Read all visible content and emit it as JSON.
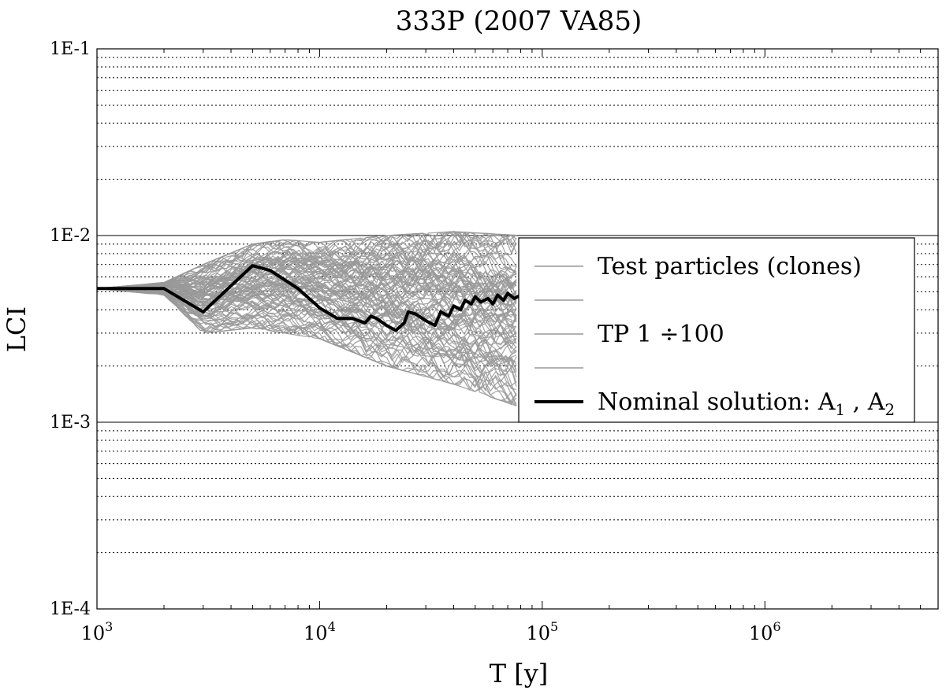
{
  "chart_data": {
    "type": "line",
    "title": "333P (2007 VA85)",
    "xlabel": "T [y]",
    "ylabel": "LCI",
    "xscale": "log",
    "yscale": "log",
    "xlim": [
      1000,
      6000000
    ],
    "ylim": [
      0.0001,
      0.1
    ],
    "x_ticks": [
      {
        "value": 1000,
        "base": "10",
        "exp": "3"
      },
      {
        "value": 10000,
        "base": "10",
        "exp": "4"
      },
      {
        "value": 100000,
        "base": "10",
        "exp": "5"
      },
      {
        "value": 1000000,
        "base": "10",
        "exp": "6"
      }
    ],
    "y_ticks": [
      {
        "value": 0.1,
        "label": "1E-1"
      },
      {
        "value": 0.01,
        "label": "1E-2"
      },
      {
        "value": 0.001,
        "label": "1E-3"
      },
      {
        "value": 0.0001,
        "label": "1E-4"
      }
    ],
    "grid": true,
    "legend_position": "center-right",
    "legend": [
      {
        "label": "Test particles (clones)",
        "style": "gray"
      },
      {
        "label": "",
        "style": "gray"
      },
      {
        "label": "TP 1 ÷100",
        "style": "gray"
      },
      {
        "label": "",
        "style": "gray"
      },
      {
        "label": "Nominal solution: A",
        "sub1": "1",
        "sep": " , A",
        "sub2": "2",
        "style": "black"
      }
    ],
    "clone_count": 100,
    "clone_band": {
      "x": [
        1000,
        2000,
        3000,
        5000,
        7000,
        10000,
        20000,
        40000,
        80000
      ],
      "y_low": [
        0.0052,
        0.0048,
        0.003,
        0.0032,
        0.003,
        0.0028,
        0.002,
        0.0016,
        0.0012
      ],
      "y_high": [
        0.0052,
        0.0056,
        0.007,
        0.009,
        0.0095,
        0.0092,
        0.01,
        0.0105,
        0.01
      ]
    },
    "series": [
      {
        "name": "Nominal solution",
        "x": [
          1000,
          2000,
          3000,
          5000,
          6000,
          8000,
          10000,
          12000,
          14000,
          15000,
          16000,
          17000,
          18000,
          20000,
          22000,
          24000,
          25000,
          27000,
          30000,
          33000,
          35000,
          38000,
          40000,
          43000,
          45000,
          48000,
          50000,
          53000,
          57000,
          60000,
          63000,
          67000,
          70000,
          75000,
          80000
        ],
        "y": [
          0.0052,
          0.0052,
          0.0039,
          0.0069,
          0.0065,
          0.0052,
          0.0041,
          0.0036,
          0.0036,
          0.0035,
          0.0034,
          0.0037,
          0.0036,
          0.0033,
          0.0031,
          0.0034,
          0.0039,
          0.0038,
          0.0035,
          0.0033,
          0.0039,
          0.0037,
          0.0042,
          0.004,
          0.0045,
          0.0043,
          0.0047,
          0.0044,
          0.0046,
          0.0043,
          0.0048,
          0.0045,
          0.0049,
          0.0046,
          0.0048
        ]
      }
    ]
  }
}
